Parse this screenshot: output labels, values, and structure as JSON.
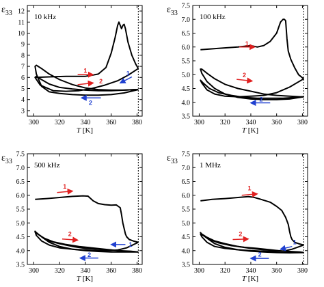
{
  "chart_data": [
    {
      "type": "line",
      "frequency_label": "10 kHz",
      "ylabel": "ε",
      "ylabel_sub": "33",
      "xlabel_italic": "T",
      "xlabel_unit": " [K]",
      "xlim": [
        295,
        384
      ],
      "ylim": [
        2.5,
        12.5
      ],
      "xticks": [
        300,
        320,
        340,
        360,
        380
      ],
      "yticks": [
        3,
        4,
        5,
        6,
        7,
        8,
        9,
        10,
        11,
        12
      ],
      "ytick_labels": [
        "3",
        "4",
        "5",
        "6",
        "7",
        "8",
        "9",
        "10",
        "11",
        "12"
      ],
      "dotted_line_x": 381,
      "series": [
        {
          "x": [
            301,
            312,
            325,
            340,
            350,
            356,
            360,
            363,
            365,
            366,
            367,
            368,
            369,
            370,
            371,
            373,
            376,
            379,
            381
          ],
          "y": [
            6.0,
            6.05,
            6.1,
            6.1,
            6.3,
            6.9,
            8.2,
            9.6,
            10.7,
            11.0,
            10.7,
            10.4,
            10.7,
            10.8,
            10.4,
            9.2,
            8.0,
            7.2,
            6.8
          ]
        },
        {
          "x": [
            381,
            373,
            365,
            355,
            345,
            335,
            325,
            315,
            305,
            301,
            302,
            306,
            312,
            320,
            330,
            340,
            350,
            360,
            370,
            378,
            381
          ],
          "y": [
            6.8,
            6.2,
            5.7,
            5.3,
            5.0,
            4.8,
            4.75,
            4.8,
            5.3,
            6.0,
            6.1,
            5.8,
            5.4,
            5.1,
            4.95,
            4.85,
            4.8,
            4.8,
            4.85,
            4.9,
            4.9
          ]
        },
        {
          "x": [
            381,
            370,
            360,
            350,
            340,
            330,
            320,
            312,
            306,
            302,
            301,
            302,
            306,
            312,
            320,
            330,
            340,
            350,
            360,
            370,
            378,
            381
          ],
          "y": [
            4.9,
            4.6,
            4.45,
            4.4,
            4.4,
            4.45,
            4.55,
            4.7,
            5.2,
            6.3,
            7.0,
            7.1,
            6.8,
            6.3,
            5.8,
            5.35,
            5.05,
            4.9,
            4.85,
            4.85,
            4.9,
            4.9
          ]
        }
      ],
      "annotations": [
        {
          "text": "1",
          "color": "#e02020",
          "x1": 334,
          "y1": 6.25,
          "x2": 346,
          "y2": 6.25,
          "tx": 340,
          "ty": 6.6
        },
        {
          "text": "2",
          "color": "#e02020",
          "x1": 334,
          "y1": 5.35,
          "x2": 346,
          "y2": 5.5,
          "tx": 352,
          "ty": 5.65
        },
        {
          "text": "1",
          "color": "#2040d0",
          "x1": 376,
          "y1": 6.05,
          "x2": 367,
          "y2": 5.5,
          "tx": 373,
          "ty": 6.35
        },
        {
          "text": "2",
          "color": "#2040d0",
          "x1": 352,
          "y1": 4.15,
          "x2": 337,
          "y2": 4.15,
          "tx": 344,
          "ty": 3.7
        }
      ]
    },
    {
      "type": "line",
      "frequency_label": "100 kHz",
      "ylabel": "ε",
      "ylabel_sub": "33",
      "xlabel_italic": "T",
      "xlabel_unit": " [K]",
      "xlim": [
        295,
        384
      ],
      "ylim": [
        3.5,
        7.5
      ],
      "xticks": [
        300,
        320,
        340,
        360,
        380
      ],
      "yticks": [
        3.5,
        4.0,
        4.5,
        5.0,
        5.5,
        6.0,
        6.5,
        7.0,
        7.5
      ],
      "ytick_labels": [
        "3.5",
        "4.0",
        "4.5",
        "5.0",
        "5.5",
        "6.0",
        "6.5",
        "7.0",
        "7.5"
      ],
      "dotted_line_x": 381,
      "series": [
        {
          "x": [
            301,
            315,
            330,
            340,
            345,
            350,
            355,
            360,
            363,
            365,
            366,
            367,
            368,
            369,
            371,
            374,
            377,
            381
          ],
          "y": [
            5.9,
            5.95,
            6.0,
            6.05,
            6.0,
            6.05,
            6.2,
            6.5,
            6.9,
            7.0,
            7.0,
            6.95,
            6.3,
            5.85,
            5.55,
            5.25,
            5.0,
            4.85
          ]
        },
        {
          "x": [
            381,
            370,
            360,
            350,
            340,
            330,
            320,
            312,
            306,
            302,
            301,
            303,
            308,
            315,
            325,
            335,
            345,
            355,
            365,
            375,
            381
          ],
          "y": [
            4.85,
            4.55,
            4.35,
            4.25,
            4.22,
            4.2,
            4.22,
            4.3,
            4.45,
            4.7,
            4.8,
            4.7,
            4.5,
            4.35,
            4.25,
            4.18,
            4.15,
            4.15,
            4.15,
            4.18,
            4.2
          ]
        },
        {
          "x": [
            381,
            370,
            360,
            350,
            340,
            330,
            320,
            312,
            306,
            302,
            301,
            302,
            306,
            312,
            320,
            330,
            340,
            350,
            360,
            370,
            378,
            381
          ],
          "y": [
            4.2,
            4.12,
            4.1,
            4.1,
            4.12,
            4.18,
            4.3,
            4.5,
            4.75,
            5.05,
            5.2,
            5.2,
            5.05,
            4.85,
            4.65,
            4.5,
            4.4,
            4.3,
            4.25,
            4.22,
            4.2,
            4.2
          ]
        }
      ],
      "annotations": [
        {
          "text": "1",
          "color": "#e02020",
          "x1": 331,
          "y1": 6.0,
          "x2": 343,
          "y2": 6.0,
          "tx": 337,
          "ty": 6.12
        },
        {
          "text": "2",
          "color": "#e02020",
          "x1": 329,
          "y1": 4.83,
          "x2": 341,
          "y2": 4.77,
          "tx": 335,
          "ty": 4.98
        },
        {
          "text": "2",
          "color": "#2040d0",
          "x1": 355,
          "y1": 3.98,
          "x2": 340,
          "y2": 3.98,
          "tx": 348,
          "ty": 4.1
        }
      ]
    },
    {
      "type": "line",
      "frequency_label": "500 kHz",
      "ylabel": "ε",
      "ylabel_sub": "33",
      "xlabel_italic": "T",
      "xlabel_unit": " [K]",
      "xlim": [
        295,
        384
      ],
      "ylim": [
        3.5,
        7.5
      ],
      "xticks": [
        300,
        320,
        340,
        360,
        380
      ],
      "yticks": [
        3.5,
        4.0,
        4.5,
        5.0,
        5.5,
        6.0,
        6.5,
        7.0,
        7.5
      ],
      "ytick_labels": [
        "3.5",
        "4.0",
        "4.5",
        "5.0",
        "5.5",
        "6.0",
        "6.5",
        "7.0",
        "7.5"
      ],
      "dotted_line_x": 381,
      "series": [
        {
          "x": [
            301,
            310,
            320,
            330,
            338,
            342,
            346,
            350,
            355,
            360,
            364,
            367,
            368,
            369,
            370,
            371,
            372,
            374,
            377,
            381
          ],
          "y": [
            5.85,
            5.88,
            5.92,
            5.96,
            5.98,
            5.97,
            5.8,
            5.7,
            5.66,
            5.64,
            5.65,
            5.55,
            5.3,
            5.0,
            4.8,
            4.6,
            4.5,
            4.4,
            4.35,
            4.3
          ]
        },
        {
          "x": [
            381,
            372,
            365,
            358,
            350,
            340,
            330,
            320,
            312,
            306,
            302,
            301,
            303,
            308,
            315,
            325,
            335,
            345,
            355,
            365,
            375,
            381
          ],
          "y": [
            4.3,
            4.1,
            4.02,
            4.0,
            4.0,
            4.02,
            4.05,
            4.1,
            4.2,
            4.35,
            4.55,
            4.68,
            4.6,
            4.45,
            4.32,
            4.22,
            4.15,
            4.1,
            4.05,
            4.0,
            3.98,
            3.95
          ]
        },
        {
          "x": [
            381,
            370,
            360,
            350,
            340,
            330,
            320,
            312,
            306,
            302,
            301,
            302,
            306,
            312,
            320,
            330,
            340,
            350,
            360,
            370,
            378,
            381
          ],
          "y": [
            3.95,
            3.95,
            3.95,
            3.97,
            4.0,
            4.05,
            4.15,
            4.3,
            4.5,
            4.65,
            4.7,
            4.65,
            4.5,
            4.35,
            4.25,
            4.15,
            4.08,
            4.05,
            4.02,
            3.98,
            3.96,
            3.95
          ]
        }
      ],
      "annotations": [
        {
          "text": "1",
          "color": "#e02020",
          "x1": 318,
          "y1": 6.1,
          "x2": 330,
          "y2": 6.15,
          "tx": 324,
          "ty": 6.32
        },
        {
          "text": "2",
          "color": "#e02020",
          "x1": 322,
          "y1": 4.42,
          "x2": 334,
          "y2": 4.38,
          "tx": 328,
          "ty": 4.6
        },
        {
          "text": "1",
          "color": "#2040d0",
          "x1": 371,
          "y1": 4.22,
          "x2": 360,
          "y2": 4.22,
          "tx": 375,
          "ty": 4.22
        },
        {
          "text": "2",
          "color": "#2040d0",
          "x1": 350,
          "y1": 3.73,
          "x2": 336,
          "y2": 3.73,
          "tx": 343,
          "ty": 3.85
        }
      ]
    },
    {
      "type": "line",
      "frequency_label": "1 MHz",
      "ylabel": "ε",
      "ylabel_sub": "33",
      "xlabel_italic": "T",
      "xlabel_unit": " [K]",
      "xlim": [
        295,
        384
      ],
      "ylim": [
        3.5,
        7.5
      ],
      "xticks": [
        300,
        320,
        340,
        360,
        380
      ],
      "yticks": [
        3.5,
        4.0,
        4.5,
        5.0,
        5.5,
        6.0,
        6.5,
        7.0,
        7.5
      ],
      "ytick_labels": [
        "3.5",
        "4.0",
        "4.5",
        "5.0",
        "5.5",
        "6.0",
        "6.5",
        "7.0",
        "7.5"
      ],
      "dotted_line_x": 381,
      "series": [
        {
          "x": [
            301,
            310,
            320,
            330,
            338,
            342,
            348,
            355,
            360,
            364,
            367,
            369,
            370,
            371,
            372,
            374,
            377,
            381
          ],
          "y": [
            5.8,
            5.85,
            5.88,
            5.92,
            5.95,
            5.93,
            5.85,
            5.75,
            5.6,
            5.45,
            5.2,
            4.95,
            4.7,
            4.5,
            4.4,
            4.3,
            4.25,
            4.2
          ]
        },
        {
          "x": [
            381,
            372,
            365,
            358,
            350,
            340,
            330,
            320,
            312,
            306,
            302,
            301,
            303,
            308,
            315,
            325,
            335,
            345,
            355,
            365,
            375,
            381
          ],
          "y": [
            4.2,
            4.05,
            3.98,
            3.97,
            3.98,
            4.0,
            4.03,
            4.08,
            4.15,
            4.3,
            4.5,
            4.6,
            4.55,
            4.4,
            4.28,
            4.18,
            4.12,
            4.08,
            4.03,
            3.98,
            3.95,
            3.93
          ]
        },
        {
          "x": [
            381,
            370,
            360,
            350,
            340,
            330,
            320,
            312,
            306,
            302,
            301,
            302,
            306,
            312,
            320,
            330,
            340,
            350,
            360,
            370,
            378,
            381
          ],
          "y": [
            3.93,
            3.92,
            3.93,
            3.95,
            3.98,
            4.03,
            4.12,
            4.25,
            4.45,
            4.6,
            4.65,
            4.6,
            4.48,
            4.35,
            4.25,
            4.15,
            4.08,
            4.03,
            4.0,
            3.97,
            3.95,
            3.93
          ]
        }
      ],
      "annotations": [
        {
          "text": "1",
          "color": "#e02020",
          "x1": 333,
          "y1": 6.0,
          "x2": 345,
          "y2": 6.05,
          "tx": 339,
          "ty": 6.25
        },
        {
          "text": "2",
          "color": "#e02020",
          "x1": 326,
          "y1": 4.4,
          "x2": 338,
          "y2": 4.42,
          "tx": 332,
          "ty": 4.6
        },
        {
          "text": "1",
          "color": "#2040d0",
          "x1": 372,
          "y1": 4.15,
          "x2": 363,
          "y2": 4.05,
          "tx": 374,
          "ty": 4.3
        },
        {
          "text": "2",
          "color": "#2040d0",
          "x1": 354,
          "y1": 3.72,
          "x2": 340,
          "y2": 3.72,
          "tx": 347,
          "ty": 3.86
        }
      ]
    }
  ]
}
